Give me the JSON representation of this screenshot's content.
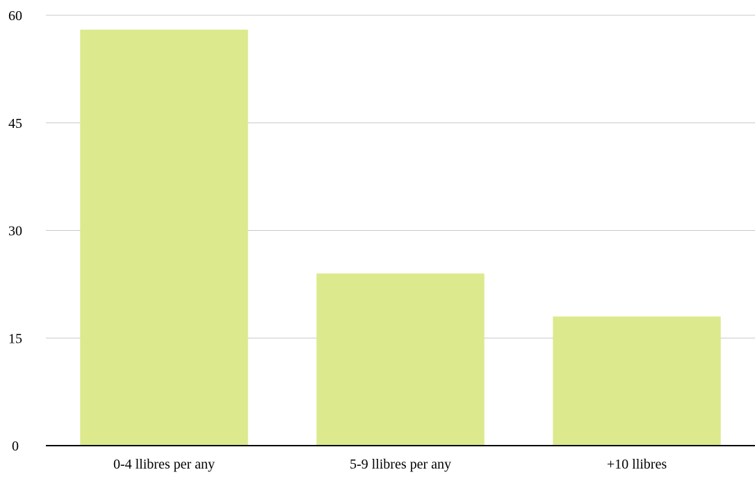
{
  "chart_data": {
    "type": "bar",
    "categories": [
      "0-4 llibres per any",
      "5-9 llibres per any",
      "+10 llibres"
    ],
    "values": [
      58,
      24,
      18
    ],
    "title": "",
    "xlabel": "",
    "ylabel": "",
    "ylim": [
      0,
      60
    ],
    "yticks": [
      0,
      15,
      30,
      45,
      60
    ],
    "grid": true,
    "legend": "none",
    "colors": {
      "bar": "#dce98c",
      "grid": "#c8c8c8",
      "axis": "#000000"
    }
  }
}
